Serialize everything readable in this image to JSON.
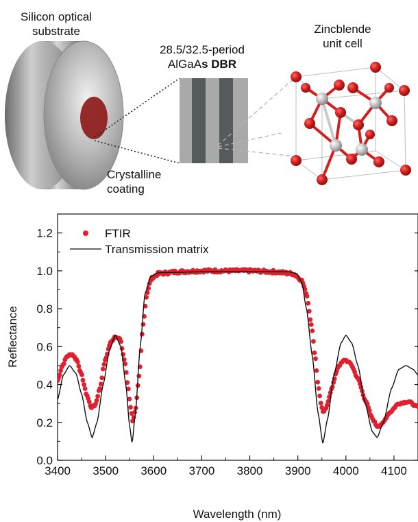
{
  "schematic": {
    "substrate_label": [
      "Silicon optical",
      "substrate"
    ],
    "coating_label": [
      "Crystalline",
      "coating"
    ],
    "dbr_label": {
      "line1": "28.5/32.5-period",
      "line2_a": "AlGaA",
      "line2_b": "s DBR"
    },
    "cell_label": [
      "Zincblende",
      "unit cell"
    ],
    "colors": {
      "coating": "#8e1a1a",
      "atom_red": "#d21f1f",
      "atom_gray": "#bdbdbd",
      "dbr_light": "#a9a9a9",
      "dbr_dark": "#555a5c"
    }
  },
  "chart_data": {
    "type": "line",
    "xlabel": "Wavelength (nm)",
    "ylabel": "Reflectance",
    "xlim": [
      3400,
      4150
    ],
    "ylim": [
      0.0,
      1.3
    ],
    "x_ticks": [
      "3400",
      "3500",
      "3600",
      "3700",
      "3800",
      "3900",
      "4000",
      "4100"
    ],
    "y_ticks": [
      "0.0",
      "0.2",
      "0.4",
      "0.6",
      "0.8",
      "1.0",
      "1.2"
    ],
    "legend_position": "top-left",
    "series": [
      {
        "name": "FTIR",
        "style": "points",
        "color": "#e0202e",
        "points": [
          [
            3400,
            0.42
          ],
          [
            3410,
            0.5
          ],
          [
            3420,
            0.55
          ],
          [
            3430,
            0.56
          ],
          [
            3440,
            0.53
          ],
          [
            3450,
            0.45
          ],
          [
            3460,
            0.35
          ],
          [
            3470,
            0.28
          ],
          [
            3478,
            0.29
          ],
          [
            3488,
            0.38
          ],
          [
            3498,
            0.52
          ],
          [
            3510,
            0.62
          ],
          [
            3520,
            0.655
          ],
          [
            3530,
            0.64
          ],
          [
            3540,
            0.52
          ],
          [
            3546,
            0.4
          ],
          [
            3552,
            0.28
          ],
          [
            3556,
            0.21
          ],
          [
            3562,
            0.26
          ],
          [
            3570,
            0.45
          ],
          [
            3578,
            0.72
          ],
          [
            3586,
            0.88
          ],
          [
            3595,
            0.96
          ],
          [
            3610,
            0.985
          ],
          [
            3650,
            0.995
          ],
          [
            3700,
            1.0
          ],
          [
            3750,
            1.0
          ],
          [
            3800,
            1.0
          ],
          [
            3850,
            0.995
          ],
          [
            3890,
            0.985
          ],
          [
            3908,
            0.95
          ],
          [
            3918,
            0.88
          ],
          [
            3928,
            0.72
          ],
          [
            3936,
            0.55
          ],
          [
            3942,
            0.4
          ],
          [
            3948,
            0.3
          ],
          [
            3953,
            0.25
          ],
          [
            3960,
            0.28
          ],
          [
            3970,
            0.38
          ],
          [
            3985,
            0.5
          ],
          [
            3998,
            0.53
          ],
          [
            4010,
            0.51
          ],
          [
            4025,
            0.43
          ],
          [
            4040,
            0.32
          ],
          [
            4055,
            0.22
          ],
          [
            4065,
            0.18
          ],
          [
            4075,
            0.19
          ],
          [
            4090,
            0.25
          ],
          [
            4110,
            0.3
          ],
          [
            4130,
            0.31
          ],
          [
            4150,
            0.28
          ]
        ]
      },
      {
        "name": "Transmission matrix",
        "style": "line",
        "color": "#111111",
        "points": [
          [
            3400,
            0.32
          ],
          [
            3412,
            0.45
          ],
          [
            3425,
            0.5
          ],
          [
            3438,
            0.46
          ],
          [
            3450,
            0.35
          ],
          [
            3462,
            0.2
          ],
          [
            3472,
            0.12
          ],
          [
            3482,
            0.2
          ],
          [
            3495,
            0.4
          ],
          [
            3508,
            0.58
          ],
          [
            3520,
            0.66
          ],
          [
            3532,
            0.6
          ],
          [
            3542,
            0.4
          ],
          [
            3550,
            0.18
          ],
          [
            3555,
            0.09
          ],
          [
            3562,
            0.25
          ],
          [
            3572,
            0.6
          ],
          [
            3582,
            0.88
          ],
          [
            3594,
            0.97
          ],
          [
            3610,
            0.99
          ],
          [
            3700,
            0.995
          ],
          [
            3800,
            0.995
          ],
          [
            3880,
            0.995
          ],
          [
            3898,
            0.985
          ],
          [
            3908,
            0.94
          ],
          [
            3918,
            0.8
          ],
          [
            3930,
            0.55
          ],
          [
            3942,
            0.25
          ],
          [
            3952,
            0.09
          ],
          [
            3962,
            0.22
          ],
          [
            3975,
            0.45
          ],
          [
            3990,
            0.62
          ],
          [
            4000,
            0.66
          ],
          [
            4012,
            0.62
          ],
          [
            4025,
            0.5
          ],
          [
            4040,
            0.3
          ],
          [
            4055,
            0.15
          ],
          [
            4065,
            0.12
          ],
          [
            4078,
            0.2
          ],
          [
            4095,
            0.38
          ],
          [
            4110,
            0.48
          ],
          [
            4125,
            0.5
          ],
          [
            4140,
            0.48
          ],
          [
            4150,
            0.45
          ]
        ]
      }
    ]
  }
}
